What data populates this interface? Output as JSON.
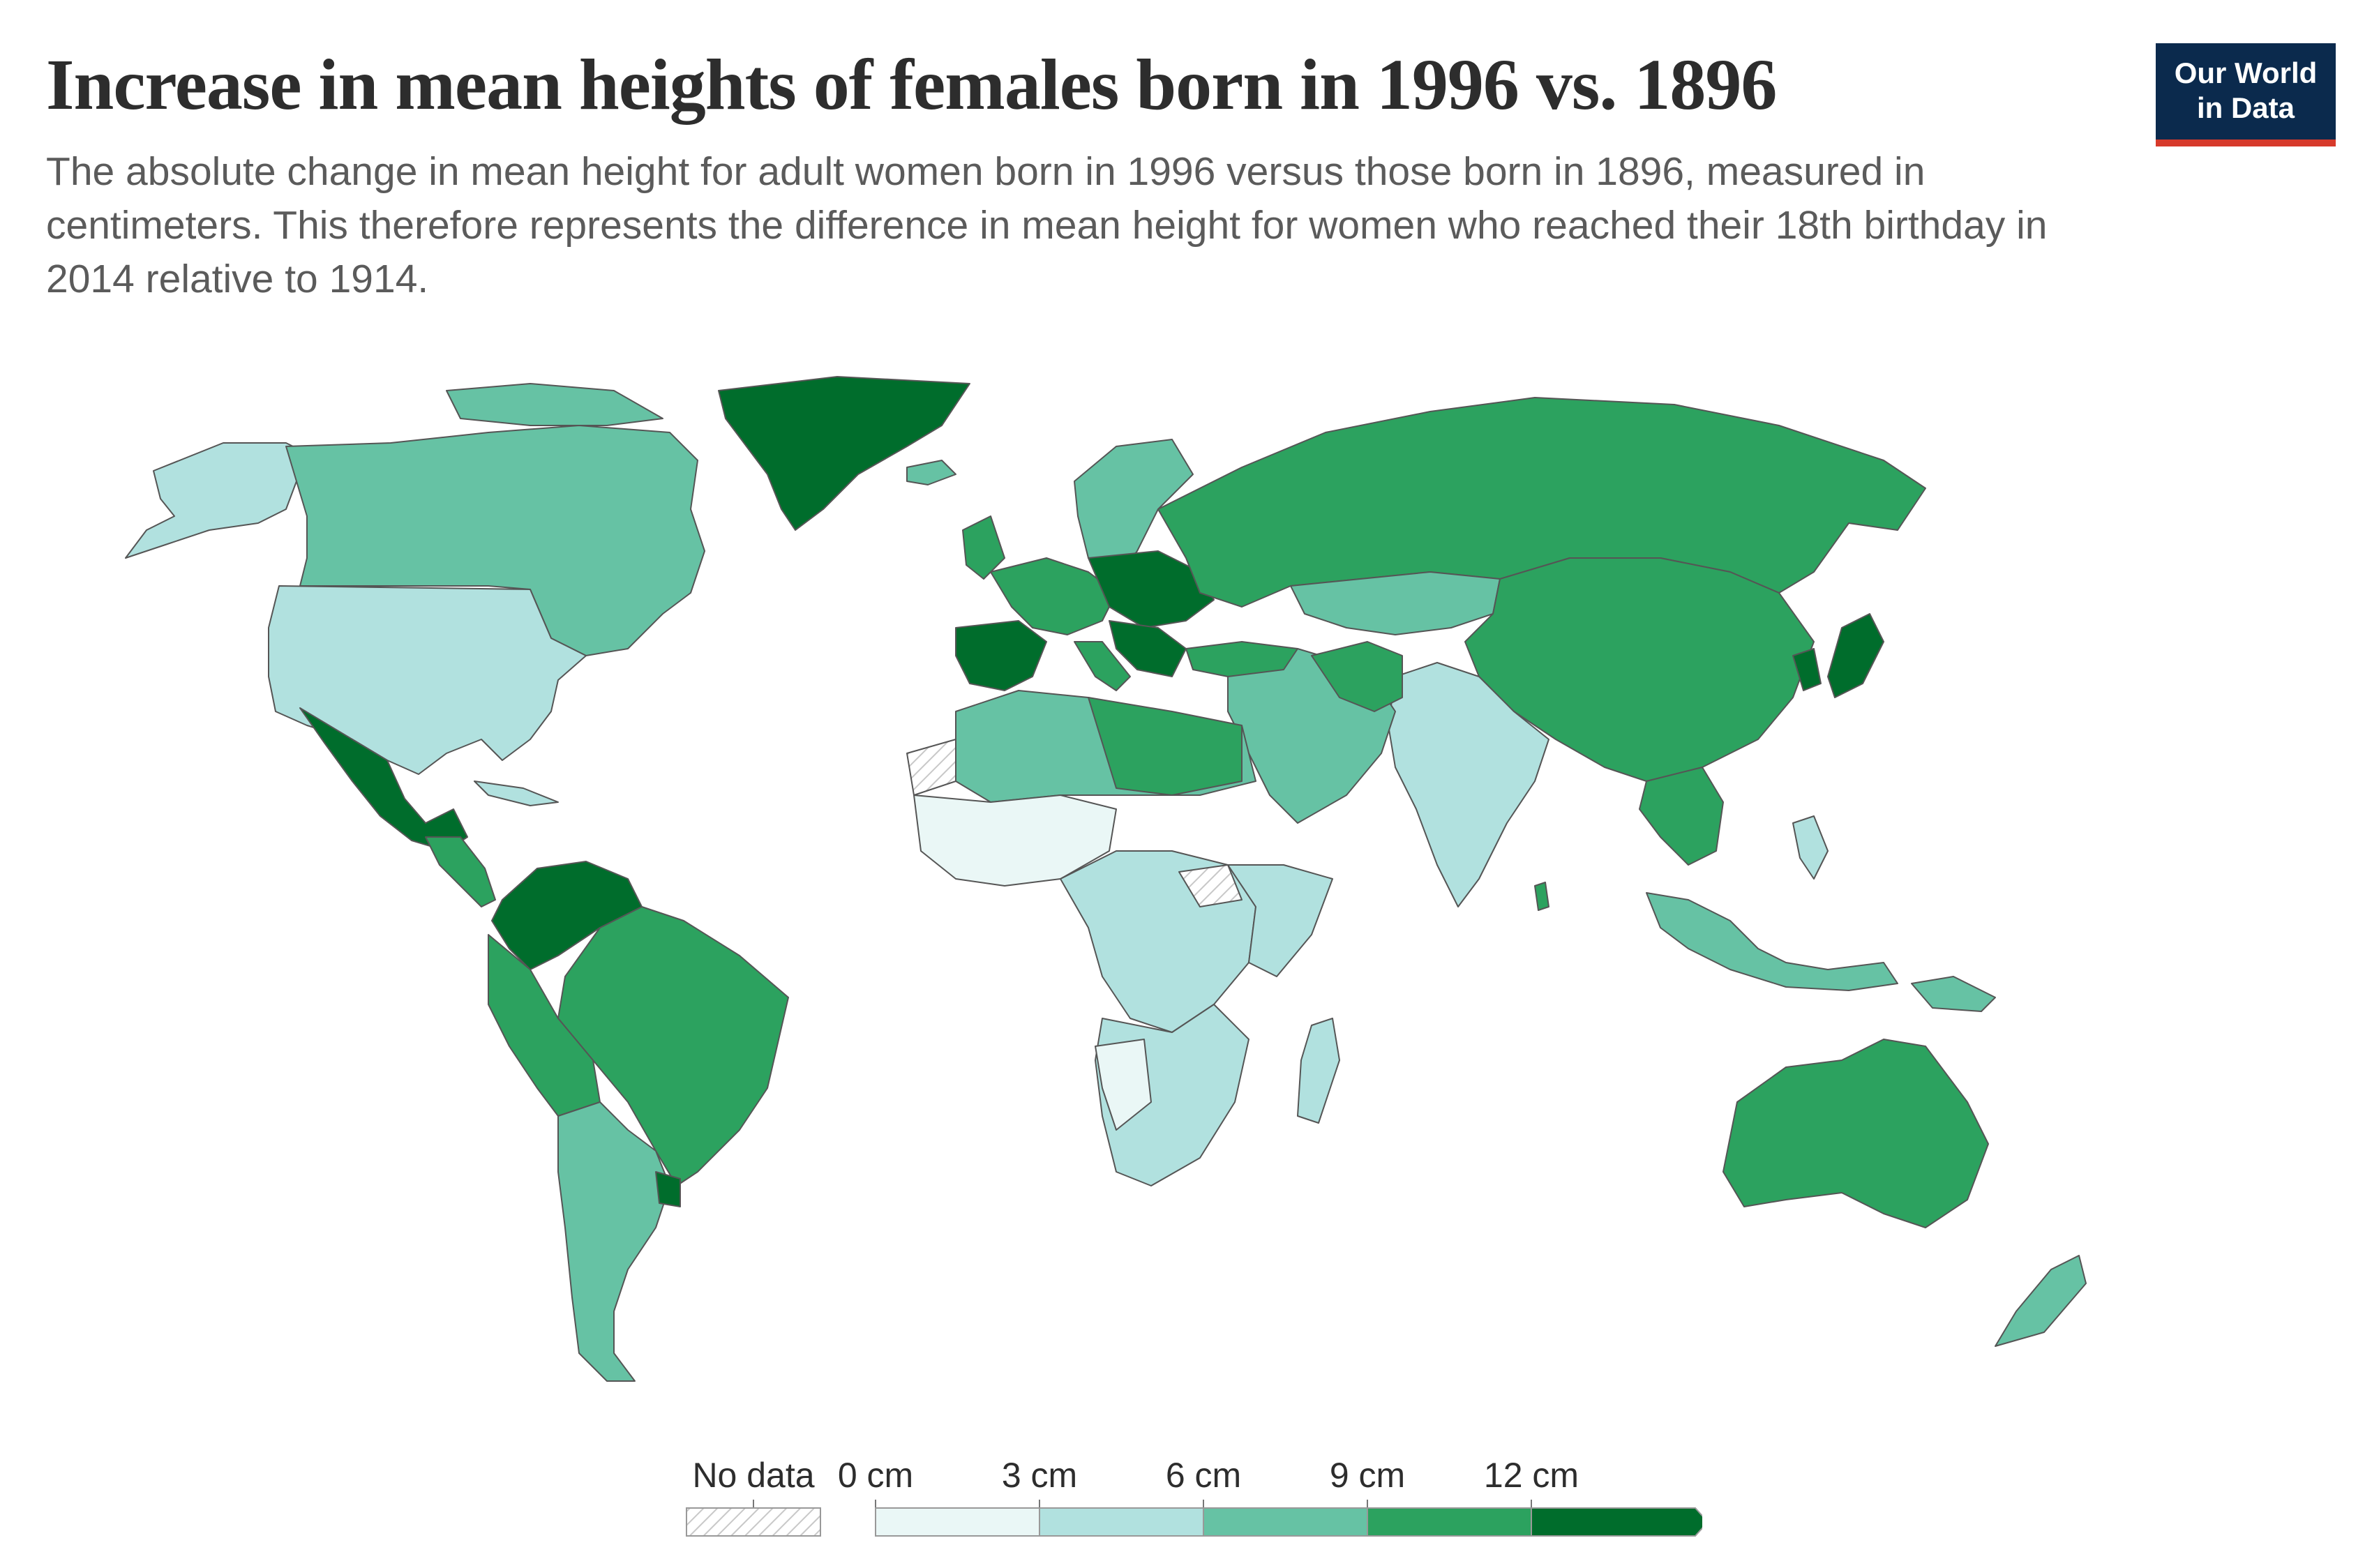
{
  "header": {
    "title": "Increase in mean heights of females born in 1996 vs. 1896",
    "subtitle": "The absolute change in mean height for adult women born in 1996 versus those born in 1896, measured in centimeters. This therefore represents the difference in mean height for women who reached their 18th birthday in 2014 relative to 1914."
  },
  "logo": {
    "line1": "Our World",
    "line2": "in Data"
  },
  "legend": {
    "no_data_label": "No data",
    "bins": [
      {
        "label": "0 cm",
        "color": "#eaf7f6"
      },
      {
        "label": "3 cm",
        "color": "#b1e1df"
      },
      {
        "label": "6 cm",
        "color": "#66c2a4"
      },
      {
        "label": "9 cm",
        "color": "#2ca25f"
      },
      {
        "label": "12 cm",
        "color": "#006d2c"
      }
    ]
  },
  "colors": {
    "no_data_fill": "#ffffff",
    "no_data_hatch": "#c8c8c8",
    "border": "#555555",
    "title": "#2d2d2d",
    "subtitle": "#5b5b5b",
    "logo_bg": "#0b2a4d",
    "logo_accent": "#d73a2b"
  }
}
